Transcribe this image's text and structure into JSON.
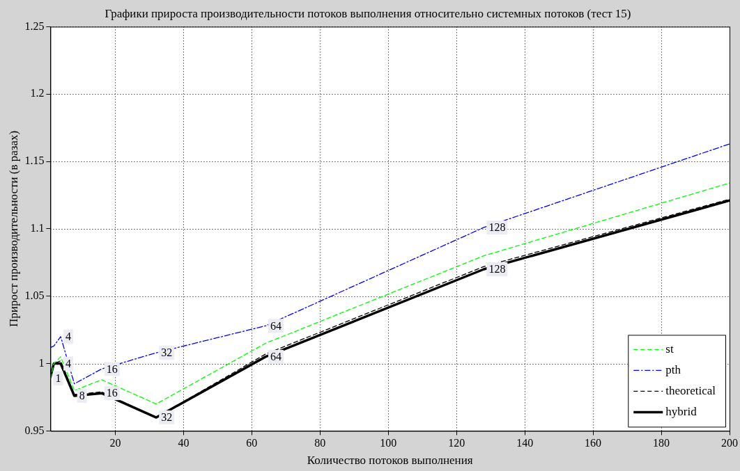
{
  "chart_data": {
    "type": "line",
    "title": "Графики прироста производительности потоков выполнения относительно системных потоков (тест 15)",
    "xlabel": "Количество потоков выполнения",
    "ylabel": "Прирост производительности (в разах)",
    "x": [
      1,
      2,
      4,
      8,
      16,
      32,
      64,
      128,
      200
    ],
    "xlim": [
      1,
      200
    ],
    "xticks": [
      20,
      40,
      60,
      80,
      100,
      120,
      140,
      160,
      180,
      200
    ],
    "ylim": [
      0.95,
      1.25
    ],
    "yticks": [
      0.95,
      1,
      1.05,
      1.1,
      1.15,
      1.2,
      1.25
    ],
    "grid": true,
    "legend": "bottom right",
    "series": [
      {
        "name": "st",
        "color": "#00ff00",
        "line_style": "dashed",
        "values": [
          0.989,
          1.0,
          1.005,
          0.98,
          0.988,
          0.97,
          1.015,
          1.08,
          1.134
        ]
      },
      {
        "name": "pth",
        "color": "#0000ff",
        "line_style": "dashdot",
        "values": [
          1.012,
          1.013,
          1.02,
          0.985,
          0.996,
          1.008,
          1.028,
          1.101,
          1.163
        ]
      },
      {
        "name": "theoretical",
        "color": "#000000",
        "line_style": "dashed",
        "values": [
          0.992,
          1.0,
          1.002,
          0.977,
          0.979,
          0.96,
          1.007,
          1.072,
          1.122
        ]
      },
      {
        "name": "hybrid",
        "color": "#000000",
        "line_style": "solid",
        "values": [
          0.99,
          1.0,
          1.0,
          0.976,
          0.978,
          0.96,
          1.005,
          1.07,
          1.121
        ]
      }
    ],
    "annotations": [
      {
        "text": "1",
        "x": 1,
        "y": 0.989
      },
      {
        "text": "4",
        "x": 4,
        "y": 1.02
      },
      {
        "text": "4",
        "x": 4,
        "y": 1.0
      },
      {
        "text": "8",
        "x": 8,
        "y": 0.976
      },
      {
        "text": "16",
        "x": 16,
        "y": 0.996
      },
      {
        "text": "16",
        "x": 16,
        "y": 0.978
      },
      {
        "text": "32",
        "x": 32,
        "y": 1.008
      },
      {
        "text": "32",
        "x": 32,
        "y": 0.96
      },
      {
        "text": "64",
        "x": 64,
        "y": 1.028
      },
      {
        "text": "64",
        "x": 64,
        "y": 1.005
      },
      {
        "text": "128",
        "x": 128,
        "y": 1.101
      },
      {
        "text": "128",
        "x": 128,
        "y": 1.07
      }
    ]
  }
}
